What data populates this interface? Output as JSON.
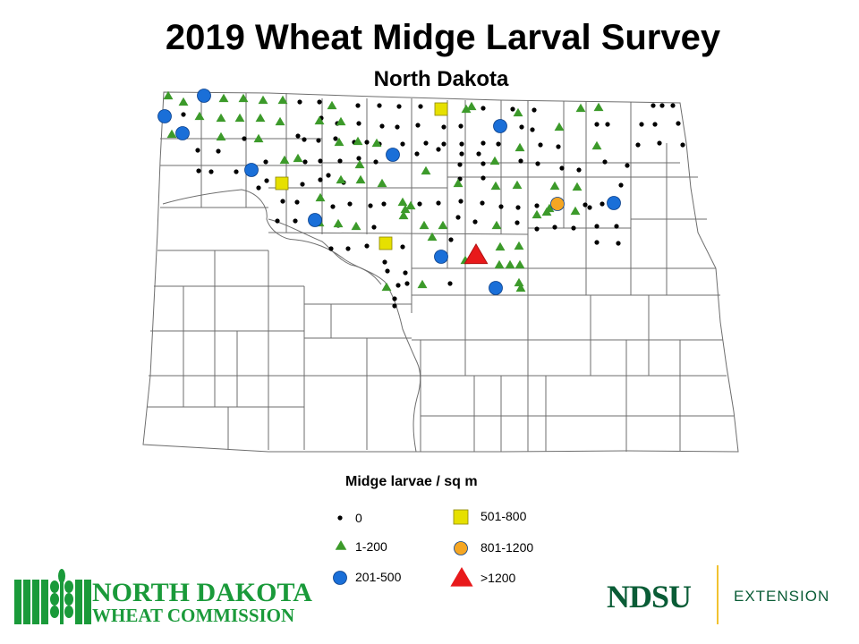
{
  "title": "2019 Wheat Midge Larval Survey",
  "subtitle": "North Dakota",
  "legend": {
    "title": "Midge larvae / sq m",
    "items": [
      {
        "label": "0",
        "symbol": "dot",
        "color": "#000000"
      },
      {
        "label": "1-200",
        "symbol": "triangle",
        "color": "#3c9a2a"
      },
      {
        "label": "201-500",
        "symbol": "circle",
        "color": "#1a6fd8"
      },
      {
        "label": "501-800",
        "symbol": "square",
        "color": "#e6e000"
      },
      {
        "label": "801-1200",
        "symbol": "circle",
        "color": "#f5a623"
      },
      {
        "label": ">1200",
        "symbol": "large-triangle",
        "color": "#e8191b"
      }
    ]
  },
  "logos": {
    "commission_line1": "NORTH DAKOTA",
    "commission_line2": "WHEAT COMMISSION",
    "university": "NDSU",
    "department": "EXTENSION"
  },
  "colors": {
    "green_triangle": "#3c9a2a",
    "blue_circle": "#1a6fd8",
    "yellow_square": "#e6e000",
    "orange_circle": "#f5a623",
    "red_triangle": "#e8191b",
    "commission_green": "#1a9a3a",
    "ndsu_green": "#0a5c36",
    "ndsu_gold": "#f2c230"
  }
}
